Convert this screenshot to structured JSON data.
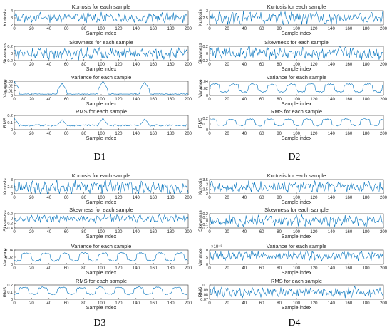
{
  "figure": {
    "line_color": "#0072BD",
    "xlabel": "Sample index",
    "xticks": [
      "0",
      "20",
      "40",
      "60",
      "80",
      "100",
      "120",
      "140",
      "160",
      "180",
      "200"
    ],
    "xlim": [
      0,
      200
    ]
  },
  "captions": [
    "D1",
    "D2",
    "D3",
    "D4"
  ],
  "chart_data": [
    {
      "type": "line",
      "group": "D1",
      "title": "Kurtosis for each sample",
      "ylabel": "Kurtosis",
      "xlabel": "Sample index",
      "ylim": [
        2,
        4
      ],
      "yticks": [
        "2",
        "3",
        "4"
      ],
      "profile": "noise",
      "base": [
        2.4,
        3.7
      ],
      "x": [
        0,
        200
      ]
    },
    {
      "type": "line",
      "group": "D1",
      "title": "Skewness for each sample",
      "ylabel": "Skewness",
      "xlabel": "Sample index",
      "ylim": [
        -0.2,
        0.2
      ],
      "yticks": [
        "-0.2",
        "0",
        "0.2"
      ],
      "profile": "noise",
      "base": [
        -0.15,
        0.15
      ],
      "x": [
        0,
        200
      ]
    },
    {
      "type": "line",
      "group": "D1",
      "title": "Variance for each sample",
      "ylabel": "Variance",
      "xlabel": "Sample index",
      "ylim": [
        0,
        0.03
      ],
      "yticks": [
        "0",
        "0.01",
        "0.02",
        "0.03"
      ],
      "profile": "spikes",
      "peaks": [
        [
          0,
          0.03
        ],
        [
          55,
          0.025
        ],
        [
          102,
          0.03
        ],
        [
          150,
          0.028
        ]
      ],
      "low": 0.003,
      "x": [
        0,
        200
      ]
    },
    {
      "type": "line",
      "group": "D1",
      "title": "RMS for each sample",
      "ylabel": "RMS",
      "xlabel": "Sample index",
      "ylim": [
        0,
        0.2
      ],
      "yticks": [
        "0",
        "0.1",
        "0.2"
      ],
      "profile": "spikes",
      "peaks": [
        [
          0,
          0.16
        ],
        [
          55,
          0.14
        ],
        [
          102,
          0.16
        ],
        [
          150,
          0.15
        ]
      ],
      "low": 0.06,
      "x": [
        0,
        200
      ]
    },
    {
      "type": "line",
      "group": "D2",
      "title": "Kurtosis for each sample",
      "ylabel": "Kurtosis",
      "xlabel": "Sample index",
      "ylim": [
        2,
        3
      ],
      "yticks": [
        "2",
        "2.5",
        "3"
      ],
      "profile": "noise",
      "base": [
        2.1,
        2.9
      ],
      "x": [
        0,
        200
      ]
    },
    {
      "type": "line",
      "group": "D2",
      "title": "Skewness for each sample",
      "ylabel": "Skewness",
      "xlabel": "Sample index",
      "ylim": [
        -0.2,
        0.2
      ],
      "yticks": [
        "-0.2",
        "0",
        "0.2"
      ],
      "profile": "noise",
      "base": [
        -0.15,
        0.18
      ],
      "x": [
        0,
        200
      ]
    },
    {
      "type": "line",
      "group": "D2",
      "title": "Variance for each sample",
      "ylabel": "Variance",
      "xlabel": "Sample index",
      "ylim": [
        0,
        0.04
      ],
      "yticks": [
        "0",
        "0.02",
        "0.04"
      ],
      "profile": "wave",
      "base": [
        0.005,
        0.035
      ],
      "x": [
        0,
        200
      ]
    },
    {
      "type": "line",
      "group": "D2",
      "title": "RMS for each sample",
      "ylabel": "RMS",
      "xlabel": "Sample index",
      "ylim": [
        0,
        0.25
      ],
      "yticks": [
        "0",
        "0.1",
        "0.2"
      ],
      "profile": "wave",
      "base": [
        0.05,
        0.2
      ],
      "x": [
        0,
        200
      ]
    },
    {
      "type": "line",
      "group": "D3",
      "title": "Kurtosis for each sample",
      "ylabel": "Kurtosis",
      "xlabel": "Sample index",
      "ylim": [
        2,
        3
      ],
      "yticks": [
        "2",
        "2.5",
        "3"
      ],
      "profile": "noise",
      "base": [
        2.0,
        2.9
      ],
      "x": [
        0,
        200
      ]
    },
    {
      "type": "line",
      "group": "D3",
      "title": "Skewness for each sample",
      "ylabel": "Skewness",
      "xlabel": "Sample index",
      "ylim": [
        -0.4,
        0.2
      ],
      "yticks": [
        "-0.4",
        "-0.2",
        "0",
        "0.2"
      ],
      "profile": "noise",
      "base": [
        -0.15,
        0.15
      ],
      "x": [
        0,
        200
      ]
    },
    {
      "type": "line",
      "group": "D3",
      "title": "Variance for each sample",
      "ylabel": "Variance",
      "xlabel": "Sample index",
      "ylim": [
        0,
        0.04
      ],
      "yticks": [
        "0",
        "0.02",
        "0.04"
      ],
      "profile": "wave",
      "base": [
        0.005,
        0.035
      ],
      "x": [
        0,
        200
      ]
    },
    {
      "type": "line",
      "group": "D3",
      "title": "RMS for each sample",
      "ylabel": "RMS",
      "xlabel": "Sample index",
      "ylim": [
        0,
        0.2
      ],
      "yticks": [
        "0",
        "0.1",
        "0.2"
      ],
      "profile": "wave",
      "base": [
        0.05,
        0.18
      ],
      "x": [
        0,
        200
      ]
    },
    {
      "type": "line",
      "group": "D4",
      "title": "Kurtosis for each sample",
      "ylabel": "Kurtosis",
      "xlabel": "Sample index",
      "ylim": [
        2,
        3.5
      ],
      "yticks": [
        "2",
        "2.5",
        "3",
        "3.5"
      ],
      "profile": "noise",
      "base": [
        2.2,
        3.3
      ],
      "x": [
        0,
        200
      ]
    },
    {
      "type": "line",
      "group": "D4",
      "title": "Skewness for each sample",
      "ylabel": "Skewness",
      "xlabel": "Sample index",
      "ylim": [
        -0.2,
        0.2
      ],
      "yticks": [
        "-0.2",
        "-0.1",
        "0",
        "0.1",
        "0.2"
      ],
      "profile": "noise",
      "base": [
        -0.15,
        0.15
      ],
      "x": [
        0,
        200
      ]
    },
    {
      "type": "line",
      "group": "D4",
      "title": "Variance for each sample",
      "ylabel": "Variance",
      "xlabel": "Sample index",
      "ylim": [
        0,
        10
      ],
      "yticks": [
        "0",
        "5",
        "10"
      ],
      "exponent": "×10⁻³",
      "profile": "noise",
      "base": [
        3,
        9
      ],
      "x": [
        0,
        200
      ]
    },
    {
      "type": "line",
      "group": "D4",
      "title": "RMS for each sample",
      "ylabel": "RMS",
      "xlabel": "Sample index",
      "ylim": [
        0.07,
        0.1
      ],
      "yticks": [
        "0.07",
        "0.08",
        "0.09",
        "0.1"
      ],
      "profile": "noise",
      "base": [
        0.075,
        0.095
      ],
      "x": [
        0,
        200
      ]
    }
  ]
}
